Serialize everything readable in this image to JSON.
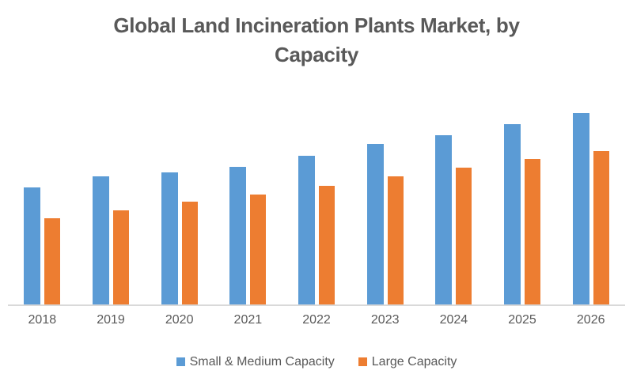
{
  "title": {
    "lines": [
      "Global Land Incineration Plants Market, by",
      "Capacity"
    ],
    "full": "Global Land Incineration Plants Market, by Capacity"
  },
  "chart_data": {
    "type": "bar",
    "title": "Global Land Incineration Plants Market, by Capacity",
    "categories": [
      "2018",
      "2019",
      "2020",
      "2021",
      "2022",
      "2023",
      "2024",
      "2025",
      "2026"
    ],
    "series": [
      {
        "name": "Small & Medium Capacity",
        "color": "#5B9BD5",
        "values": [
          148,
          162,
          167,
          174,
          188,
          203,
          214,
          228,
          242
        ]
      },
      {
        "name": "Large Capacity",
        "color": "#ED7D31",
        "values": [
          109,
          119,
          130,
          139,
          150,
          162,
          173,
          184,
          194
        ]
      }
    ],
    "xlabel": "",
    "ylabel": "",
    "ylim": [
      0,
      260
    ],
    "grid": false,
    "value_axis_visible": false,
    "legend_position": "bottom"
  },
  "colors": {
    "title_text": "#595959",
    "axis_label_text": "#595959",
    "legend_text": "#595959",
    "axis_line": "#D9D9D9",
    "background": "#FFFFFF"
  }
}
